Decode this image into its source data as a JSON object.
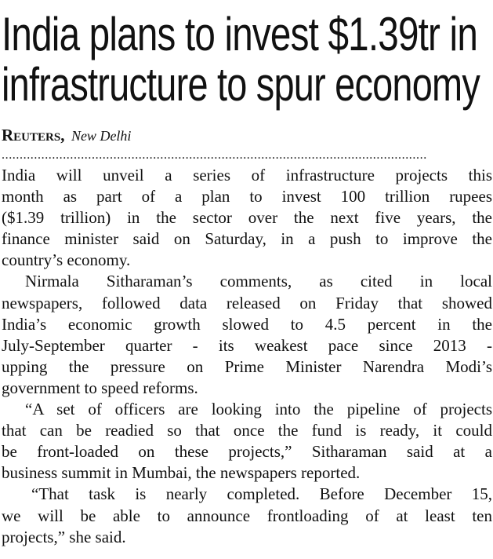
{
  "headline": {
    "lines": [
      "India plans to invest $1.39tr in",
      "infrastructure to spur economy"
    ]
  },
  "byline": {
    "agency": "Reuters,",
    "place": "New Delhi"
  },
  "separator": "......................................................................................................................",
  "article": {
    "paragraphs": [
      {
        "lines": [
          "India will unveil a series of infrastructure projects this",
          "month as part of a plan to invest 100 trillion rupees",
          "($1.39 trillion) in the sector over the next five years, the",
          "finance minister said on Saturday, in a push to improve the",
          "country’s economy."
        ]
      },
      {
        "lines": [
          "Nirmala Sitharaman’s comments, as cited in local",
          "newspapers, followed data released on Friday that showed",
          "India’s economic growth slowed to 4.5 percent in the",
          "July-September quarter - its weakest pace since 2013 -",
          "upping the pressure on Prime Minister Narendra Modi’s",
          "government to speed reforms."
        ]
      },
      {
        "lines": [
          "“A set of officers are looking into the pipeline of projects",
          "that can be readied so that once the fund is ready, it could",
          "be front-loaded on these projects,” Sitharaman said at a",
          "business summit in Mumbai, the newspapers reported."
        ]
      },
      {
        "lines": [
          "“That task is nearly completed. Before December 15,",
          "we will be able to announce frontloading of at least ten",
          "projects,” she said."
        ]
      }
    ]
  }
}
